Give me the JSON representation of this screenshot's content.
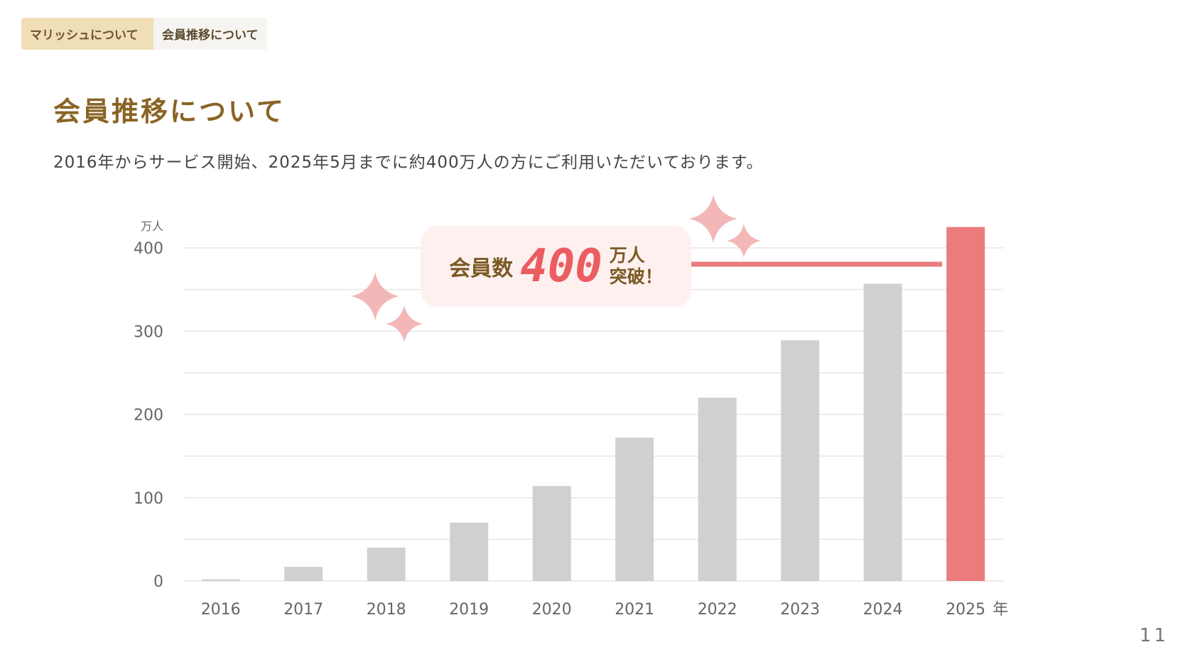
{
  "breadcrumb": {
    "tabs": [
      "マリッシュについて",
      "会員推移について"
    ]
  },
  "header": {
    "title": "会員推移について",
    "subtitle": "2016年からサービス開始、2025年5月までに約400万人の方にご利用いただいております。"
  },
  "callout": {
    "label": "会員数",
    "number": "400",
    "unit_line1": "万人",
    "unit_line2": "突破！"
  },
  "page_number": "11",
  "colors": {
    "bar": "#d0d0d0",
    "highlight": "#ec7b7b",
    "sparkle": "#f4b7b7",
    "accent": "#8a6424"
  },
  "chart_data": {
    "type": "bar",
    "categories": [
      "2016",
      "2017",
      "2018",
      "2019",
      "2020",
      "2021",
      "2022",
      "2023",
      "2024",
      "2025"
    ],
    "values": [
      2,
      17,
      40,
      70,
      114,
      172,
      220,
      289,
      357,
      425
    ],
    "highlight_category": "2025",
    "ylabel": "万人",
    "xlabel_suffix": "年",
    "yticks": [
      "0",
      "100",
      "200",
      "300",
      "400"
    ],
    "ylim": [
      0,
      400
    ],
    "grid": true
  }
}
